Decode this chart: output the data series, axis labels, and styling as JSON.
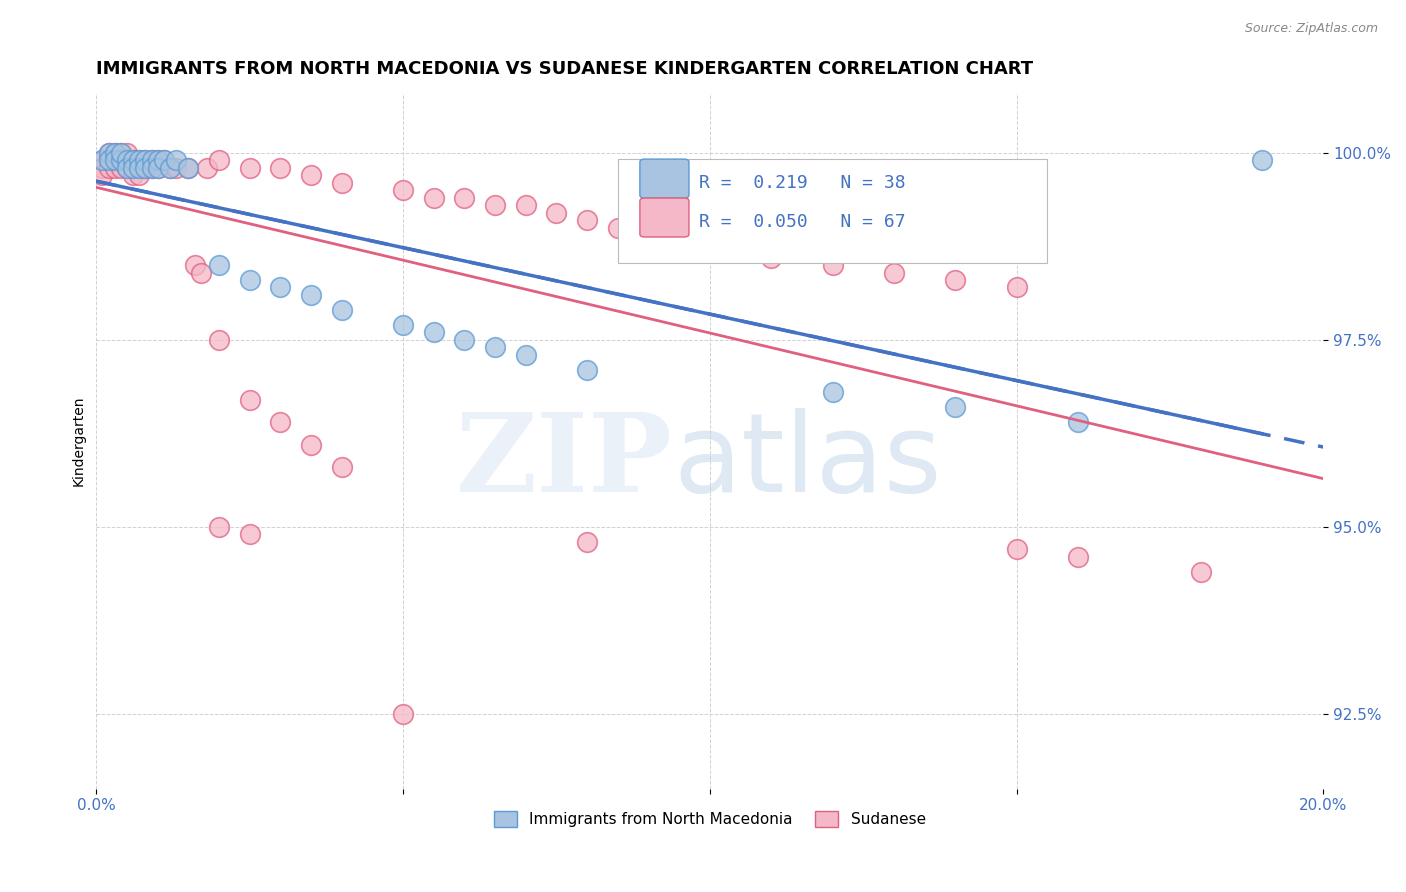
{
  "title": "IMMIGRANTS FROM NORTH MACEDONIA VS SUDANESE KINDERGARTEN CORRELATION CHART",
  "source": "Source: ZipAtlas.com",
  "ylabel": "Kindergarten",
  "xlim": [
    0.0,
    0.2
  ],
  "ylim": [
    0.915,
    1.008
  ],
  "xticks": [
    0.0,
    0.05,
    0.1,
    0.15,
    0.2
  ],
  "xticklabels": [
    "0.0%",
    "",
    "",
    "",
    "20.0%"
  ],
  "yticks": [
    0.925,
    0.95,
    0.975,
    1.0
  ],
  "yticklabels": [
    "92.5%",
    "95.0%",
    "97.5%",
    "100.0%"
  ],
  "legend_entries": [
    {
      "label": "Immigrants from North Macedonia",
      "color": "#a8c4e0",
      "edge": "#5b9bd5",
      "r": 0.219,
      "n": 38
    },
    {
      "label": "Sudanese",
      "color": "#f4b8c8",
      "edge": "#e06080",
      "r": 0.05,
      "n": 67
    }
  ],
  "blue_scatter_x": [
    0.001,
    0.002,
    0.002,
    0.003,
    0.003,
    0.004,
    0.004,
    0.005,
    0.005,
    0.006,
    0.006,
    0.007,
    0.007,
    0.008,
    0.008,
    0.009,
    0.009,
    0.01,
    0.01,
    0.011,
    0.012,
    0.013,
    0.015,
    0.02,
    0.025,
    0.03,
    0.035,
    0.04,
    0.05,
    0.055,
    0.06,
    0.065,
    0.07,
    0.08,
    0.12,
    0.14,
    0.16,
    0.19
  ],
  "blue_scatter_y": [
    0.999,
    1.0,
    0.999,
    1.0,
    0.999,
    0.999,
    1.0,
    0.999,
    0.998,
    0.999,
    0.998,
    0.999,
    0.998,
    0.999,
    0.998,
    0.999,
    0.998,
    0.999,
    0.998,
    0.999,
    0.998,
    0.999,
    0.998,
    0.985,
    0.983,
    0.982,
    0.981,
    0.979,
    0.977,
    0.976,
    0.975,
    0.974,
    0.973,
    0.971,
    0.968,
    0.966,
    0.964,
    0.999
  ],
  "pink_scatter_x": [
    0.001,
    0.001,
    0.001,
    0.002,
    0.002,
    0.002,
    0.003,
    0.003,
    0.003,
    0.004,
    0.004,
    0.004,
    0.005,
    0.005,
    0.005,
    0.006,
    0.006,
    0.006,
    0.007,
    0.007,
    0.007,
    0.008,
    0.008,
    0.009,
    0.009,
    0.01,
    0.01,
    0.011,
    0.012,
    0.013,
    0.015,
    0.018,
    0.02,
    0.025,
    0.03,
    0.035,
    0.04,
    0.05,
    0.055,
    0.06,
    0.065,
    0.07,
    0.075,
    0.08,
    0.085,
    0.09,
    0.095,
    0.1,
    0.11,
    0.12,
    0.13,
    0.14,
    0.15,
    0.016,
    0.017,
    0.02,
    0.025,
    0.03,
    0.035,
    0.04,
    0.02,
    0.025,
    0.08,
    0.15,
    0.16,
    0.18,
    0.05
  ],
  "pink_scatter_y": [
    0.999,
    0.998,
    0.997,
    1.0,
    0.999,
    0.998,
    1.0,
    0.999,
    0.998,
    1.0,
    0.999,
    0.998,
    1.0,
    0.999,
    0.998,
    0.999,
    0.998,
    0.997,
    0.999,
    0.998,
    0.997,
    0.999,
    0.998,
    0.999,
    0.998,
    0.999,
    0.998,
    0.999,
    0.998,
    0.998,
    0.998,
    0.998,
    0.999,
    0.998,
    0.998,
    0.997,
    0.996,
    0.995,
    0.994,
    0.994,
    0.993,
    0.993,
    0.992,
    0.991,
    0.99,
    0.989,
    0.988,
    0.987,
    0.986,
    0.985,
    0.984,
    0.983,
    0.982,
    0.985,
    0.984,
    0.975,
    0.967,
    0.964,
    0.961,
    0.958,
    0.95,
    0.949,
    0.948,
    0.947,
    0.946,
    0.944,
    0.925
  ],
  "blue_line_color": "#4472c4",
  "pink_line_color": "#e06080",
  "blue_scatter_color": "#a8c4e0",
  "blue_edge_color": "#5b9bd5",
  "pink_scatter_color": "#f4b8c8",
  "pink_edge_color": "#e06080",
  "background_color": "#ffffff",
  "title_fontsize": 13,
  "axis_label_fontsize": 10,
  "tick_fontsize": 11
}
